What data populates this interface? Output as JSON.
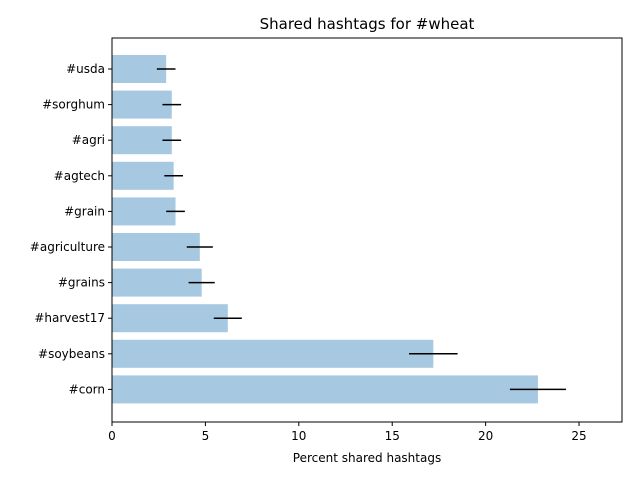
{
  "chart_data": {
    "type": "bar",
    "orientation": "horizontal",
    "title": "Shared hashtags for #wheat",
    "xlabel": "Percent shared hashtags",
    "ylabel": "",
    "xlim": [
      0,
      27.3
    ],
    "xticks": [
      "0",
      "5",
      "10",
      "15",
      "20",
      "25"
    ],
    "xtick_values": [
      0,
      5,
      10,
      15,
      20,
      25
    ],
    "categories": [
      "#usda",
      "#sorghum",
      "#agri",
      "#agtech",
      "#grain",
      "#agriculture",
      "#grains",
      "#harvest17",
      "#soybeans",
      "#corn"
    ],
    "values": [
      2.9,
      3.2,
      3.2,
      3.3,
      3.4,
      4.7,
      4.8,
      6.2,
      17.2,
      22.8
    ],
    "error": [
      0.5,
      0.5,
      0.5,
      0.5,
      0.5,
      0.7,
      0.7,
      0.75,
      1.3,
      1.5
    ],
    "bar_color": "#a6c8e0",
    "errorbar_color": "#000000",
    "grid": false,
    "legend": "none"
  }
}
